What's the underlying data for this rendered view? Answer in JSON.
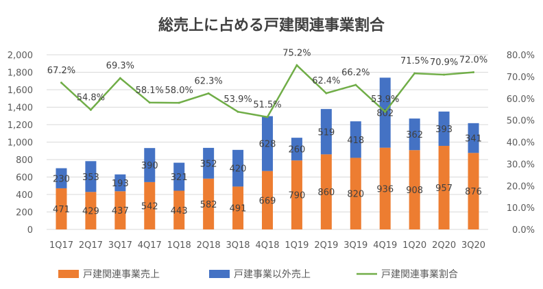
{
  "chart_data": {
    "type": "bar",
    "title": "総売上に占める戸建関連事業割合",
    "categories": [
      "1Q17",
      "2Q17",
      "3Q17",
      "4Q17",
      "1Q18",
      "2Q18",
      "3Q18",
      "4Q18",
      "1Q19",
      "2Q19",
      "3Q19",
      "4Q19",
      "1Q20",
      "2Q20",
      "3Q20"
    ],
    "stacked": true,
    "series": [
      {
        "name": "戸建関連事業売上",
        "type": "bar",
        "axis": "left",
        "color": "#ED7D31",
        "values": [
          471,
          429,
          437,
          542,
          443,
          582,
          491,
          669,
          790,
          860,
          820,
          936,
          908,
          957,
          876
        ]
      },
      {
        "name": "戸建事業以外売上",
        "type": "bar",
        "axis": "left",
        "color": "#4472C4",
        "values": [
          230,
          353,
          193,
          390,
          321,
          352,
          420,
          628,
          260,
          519,
          418,
          802,
          362,
          393,
          341
        ]
      },
      {
        "name": "戸建関連事業割合",
        "type": "line",
        "axis": "right",
        "color": "#70AD47",
        "values": [
          67.2,
          54.8,
          69.3,
          58.1,
          58.0,
          62.3,
          53.9,
          51.5,
          75.2,
          62.4,
          66.2,
          53.9,
          71.5,
          70.9,
          72.0
        ]
      }
    ],
    "y_left": {
      "range": [
        0,
        2000
      ],
      "ticks": [
        "0",
        "200",
        "400",
        "600",
        "800",
        "1,000",
        "1,200",
        "1,400",
        "1,600",
        "1,800",
        "2,000"
      ]
    },
    "y_right": {
      "range": [
        0,
        80
      ],
      "ticks": [
        "0.0%",
        "10.0%",
        "20.0%",
        "30.0%",
        "40.0%",
        "50.0%",
        "60.0%",
        "70.0%",
        "80.0%"
      ]
    },
    "grid": true,
    "legend": "bottom"
  }
}
